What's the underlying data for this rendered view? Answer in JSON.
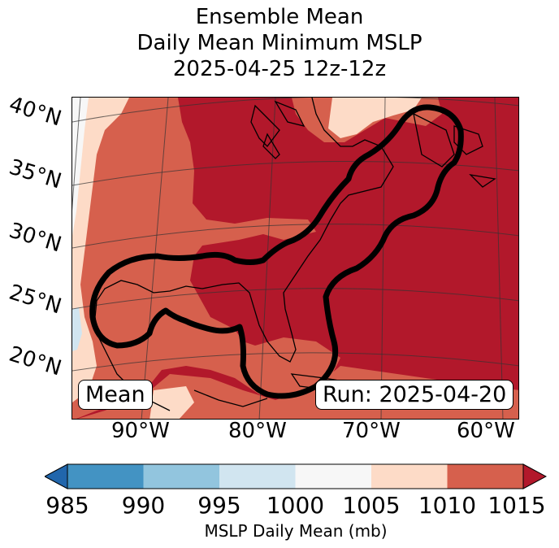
{
  "title": {
    "line1": "Ensemble Mean",
    "line2": "Daily Mean Minimum MSLP",
    "line3": "2025-04-25 12z-12z"
  },
  "map": {
    "lat_labels": [
      "40°N",
      "35°N",
      "30°N",
      "25°N",
      "20°N"
    ],
    "lon_labels": [
      "90°W",
      "80°W",
      "70°W",
      "60°W"
    ],
    "mean_label": "Mean",
    "run_label": "Run: 2025-04-20",
    "contour_color": "#000000"
  },
  "colorbar": {
    "ticks": [
      "985",
      "990",
      "995",
      "1000",
      "1005",
      "1010",
      "1015"
    ],
    "label": "MSLP Daily Mean (mb)",
    "colors": {
      "below_985": "#2166ac",
      "985_990": "#4393c3",
      "990_995": "#92c5de",
      "995_1000": "#d1e5f0",
      "1000_1005": "#f7f7f7",
      "1005_1010": "#fddbc7",
      "1010_1015": "#d6604d",
      "above_1015": "#b2182b"
    }
  }
}
